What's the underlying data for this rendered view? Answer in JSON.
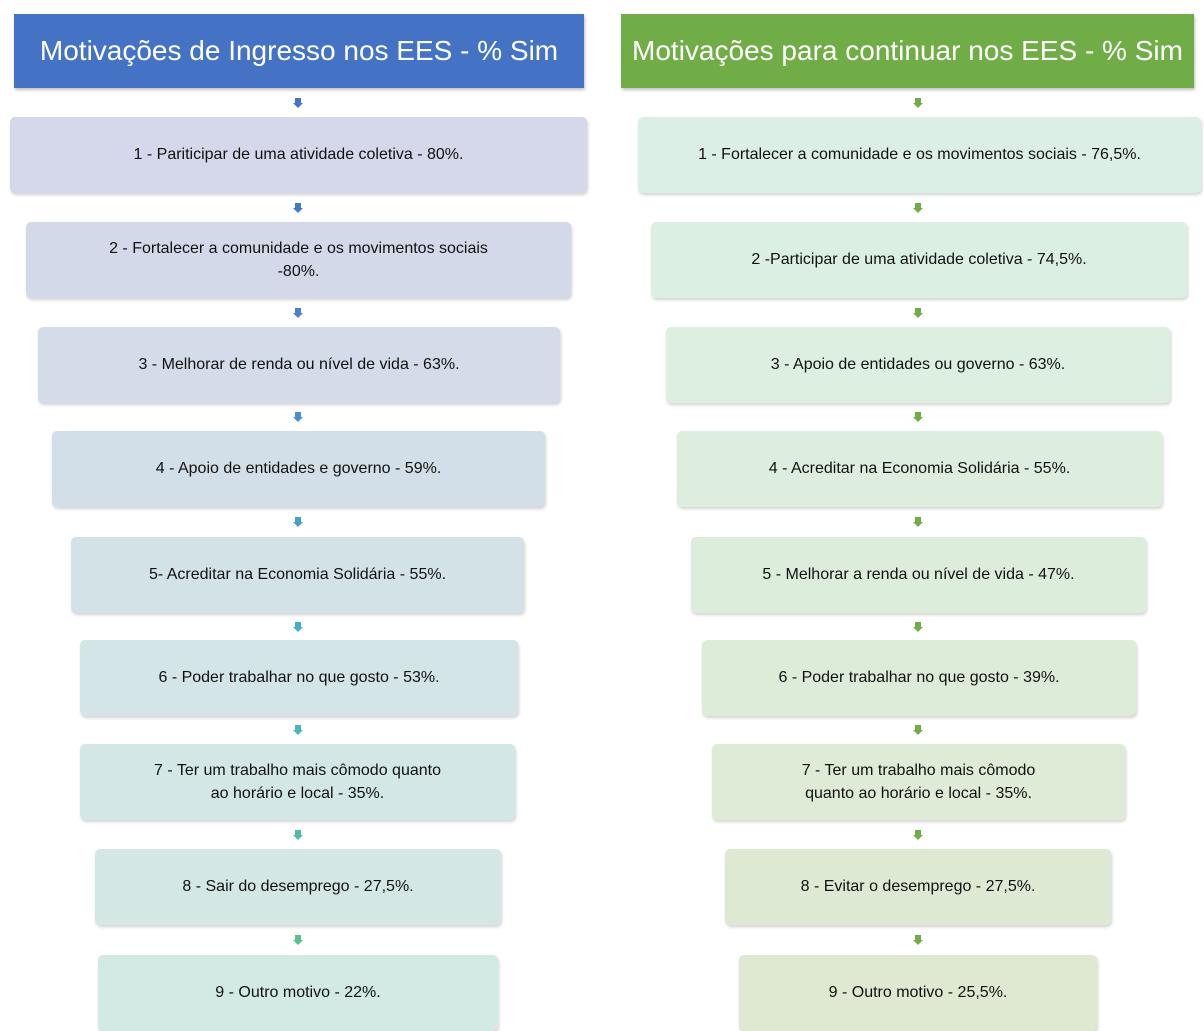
{
  "left": {
    "title": "Motivações de Ingresso nos EES - % Sim",
    "items": [
      "1 - Pariticipar de uma atividade coletiva - 80%.",
      "2 - Fortalecer a comunidade e os movimentos sociais -80%.",
      "3 - Melhorar de renda ou nível de vida - 63%.",
      "4 - Apoio de entidades e governo - 59%.",
      "5- Acreditar na Economia Solidária - 55%.",
      "6 - Poder trabalhar no que gosto - 53%.",
      "7 - Ter um trabalho mais cômodo quanto ao horário e local - 35%.",
      "8 - Sair do desemprego - 27,5%.",
      "9 - Outro motivo - 22%."
    ]
  },
  "right": {
    "title": "Motivações para continuar nos EES - % Sim",
    "items": [
      "1 - Fortalecer a comunidade e os movimentos sociais - 76,5%.",
      "2 -Participar de uma atividade coletiva - 74,5%.",
      "3 - Apoio de entidades ou governo - 63%.",
      "4 - Acreditar na Economia Solidária - 55%.",
      "5 - Melhorar a renda ou nível de vida - 47%.",
      "6 - Poder trabalhar no que gosto - 39%.",
      "7 - Ter um trabalho mais cômodo quanto ao horário e local - 35%.",
      "8 - Evitar o desemprego - 27,5%.",
      "9 - Outro motivo - 25,5%."
    ]
  }
}
